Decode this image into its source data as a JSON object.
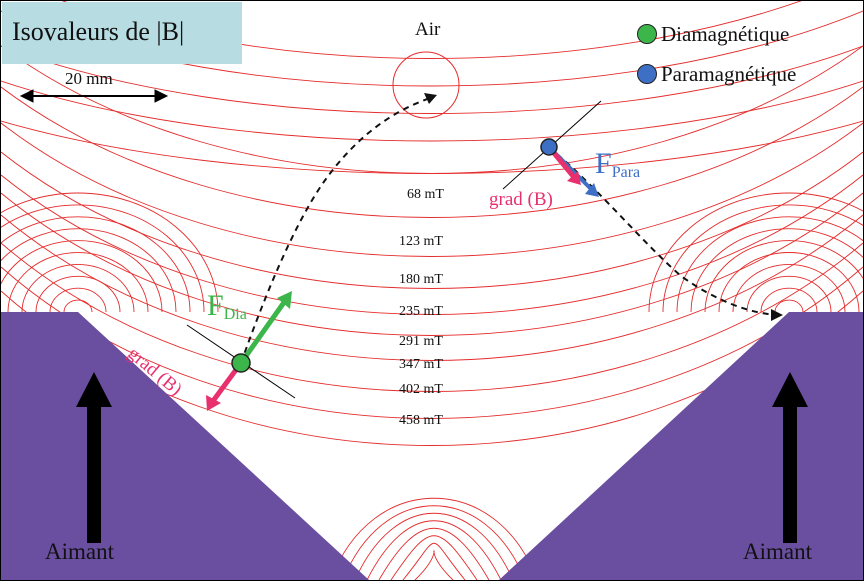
{
  "title": "Isovaleurs de |B|",
  "medium_label": "Air",
  "scale_bar": {
    "label": "20 mm"
  },
  "legend": [
    {
      "label": "Diamagnétique",
      "color": "#3cb54a"
    },
    {
      "label": "Paramagnétique",
      "color": "#3d6fc4"
    }
  ],
  "isovalues": [
    "68 mT",
    "123 mT",
    "180 mT",
    "235 mT",
    "291 mT",
    "347 mT",
    "402 mT",
    "458 mT"
  ],
  "forces": {
    "dia": {
      "symbol": "F",
      "subscript": "Dia",
      "color": "#3cb54a"
    },
    "para": {
      "symbol": "F",
      "subscript": "Para",
      "color": "#3d6fc4"
    }
  },
  "gradient_label": "grad (B)",
  "gradient_color": "#e8306e",
  "magnets": {
    "left_label": "Aimant",
    "right_label": "Aimant",
    "color": "#6a4ea0"
  },
  "field_line_color": "#e52b2b"
}
